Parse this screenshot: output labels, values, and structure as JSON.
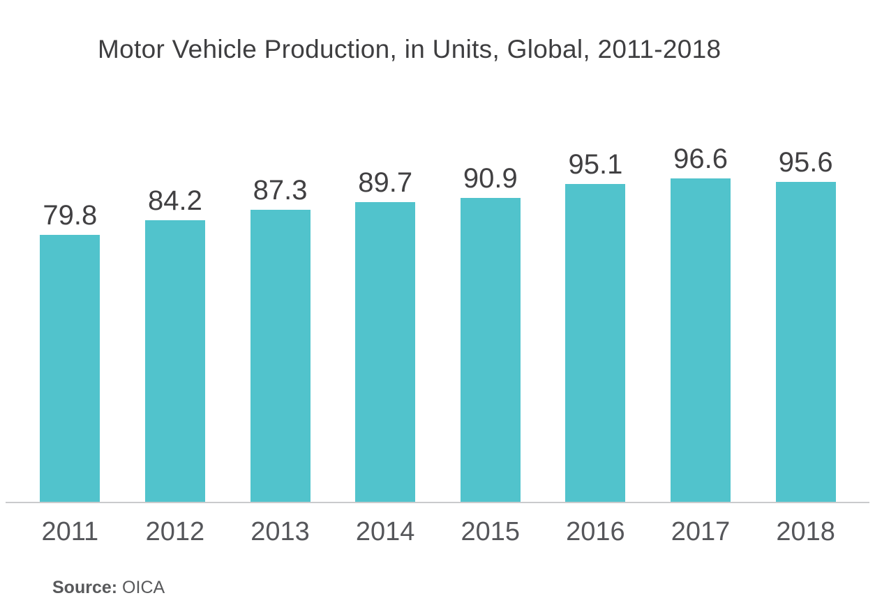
{
  "title": "Motor Vehicle Production, in Units, Global, 2011-2018",
  "source": {
    "label": "Source:",
    "value": "OICA"
  },
  "colors": {
    "bar": "#51c3cc",
    "title_text": "#3e3e40",
    "value_label_text": "#414042",
    "year_label_text": "#55565a",
    "axis_line": "#c9cacc",
    "background": "#ffffff"
  },
  "chart_data": {
    "type": "bar",
    "title": "Motor Vehicle Production, in Units, Global, 2011-2018",
    "categories": [
      "2011",
      "2012",
      "2013",
      "2014",
      "2015",
      "2016",
      "2017",
      "2018"
    ],
    "values": [
      79.8,
      84.2,
      87.3,
      89.7,
      90.9,
      95.1,
      96.6,
      95.6
    ],
    "xlabel": "",
    "ylabel": "",
    "ylim": [
      0,
      100
    ],
    "grid": false,
    "legend": false,
    "data_labels": true,
    "bar_color": "#51c3cc",
    "source_note": "Source: OICA"
  }
}
